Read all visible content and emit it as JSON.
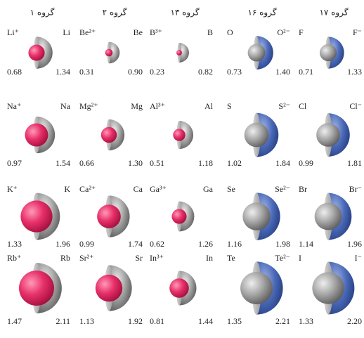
{
  "groups": [
    {
      "header": "گروه ۱",
      "rows": [
        {
          "left_label": "Li⁺",
          "right_label": "Li",
          "left_value": "0.68",
          "right_value": "1.34"
        },
        {
          "left_label": "Na⁺",
          "right_label": "Na",
          "left_value": "0.97",
          "right_value": "1.54"
        },
        {
          "left_label": "K⁺",
          "right_label": "K",
          "left_value": "1.33",
          "right_value": "1.96"
        },
        {
          "left_label": "Rb⁺",
          "right_label": "Rb",
          "left_value": "1.47",
          "right_value": "2.11"
        }
      ]
    },
    {
      "header": "گروه ۲",
      "rows": [
        {
          "left_label": "Be²⁺",
          "right_label": "Be",
          "left_value": "0.31",
          "right_value": "0.90"
        },
        {
          "left_label": "Mg²⁺",
          "right_label": "Mg",
          "left_value": "0.66",
          "right_value": "1.30"
        },
        {
          "left_label": "Ca²⁺",
          "right_label": "Ca",
          "left_value": "0.99",
          "right_value": "1.74"
        },
        {
          "left_label": "Sr²⁺",
          "right_label": "Sr",
          "left_value": "1.13",
          "right_value": "1.92"
        }
      ]
    },
    {
      "header": "گروه ۱۳",
      "rows": [
        {
          "left_label": "B³⁺",
          "right_label": "B",
          "left_value": "0.23",
          "right_value": "0.82"
        },
        {
          "left_label": "Al³⁺",
          "right_label": "Al",
          "left_value": "0.51",
          "right_value": "1.18"
        },
        {
          "left_label": "Ga³⁺",
          "right_label": "Ga",
          "left_value": "0.62",
          "right_value": "1.26"
        },
        {
          "left_label": "In³⁺",
          "right_label": "In",
          "left_value": "0.81",
          "right_value": "1.44"
        }
      ]
    },
    {
      "header": "گروه ۱۶",
      "rows": [
        {
          "left_label": "O",
          "right_label": "O²⁻",
          "left_value": "0.73",
          "right_value": "1.40"
        },
        {
          "left_label": "S",
          "right_label": "S²⁻",
          "left_value": "1.02",
          "right_value": "1.84"
        },
        {
          "left_label": "Se",
          "right_label": "Se²⁻",
          "left_value": "1.16",
          "right_value": "1.98"
        },
        {
          "left_label": "Te",
          "right_label": "Te²⁻",
          "left_value": "1.35",
          "right_value": "2.21"
        }
      ]
    },
    {
      "header": "گروه ۱۷",
      "rows": [
        {
          "left_label": "F",
          "right_label": "F⁻",
          "left_value": "0.71",
          "right_value": "1.33"
        },
        {
          "left_label": "Cl",
          "right_label": "Cl⁻",
          "left_value": "0.99",
          "right_value": "1.81"
        },
        {
          "left_label": "Br",
          "right_label": "Br⁻",
          "left_value": "1.14",
          "right_value": "1.96"
        },
        {
          "left_label": "I",
          "right_label": "I⁻",
          "left_value": "1.33",
          "right_value": "2.20"
        }
      ]
    }
  ]
}
